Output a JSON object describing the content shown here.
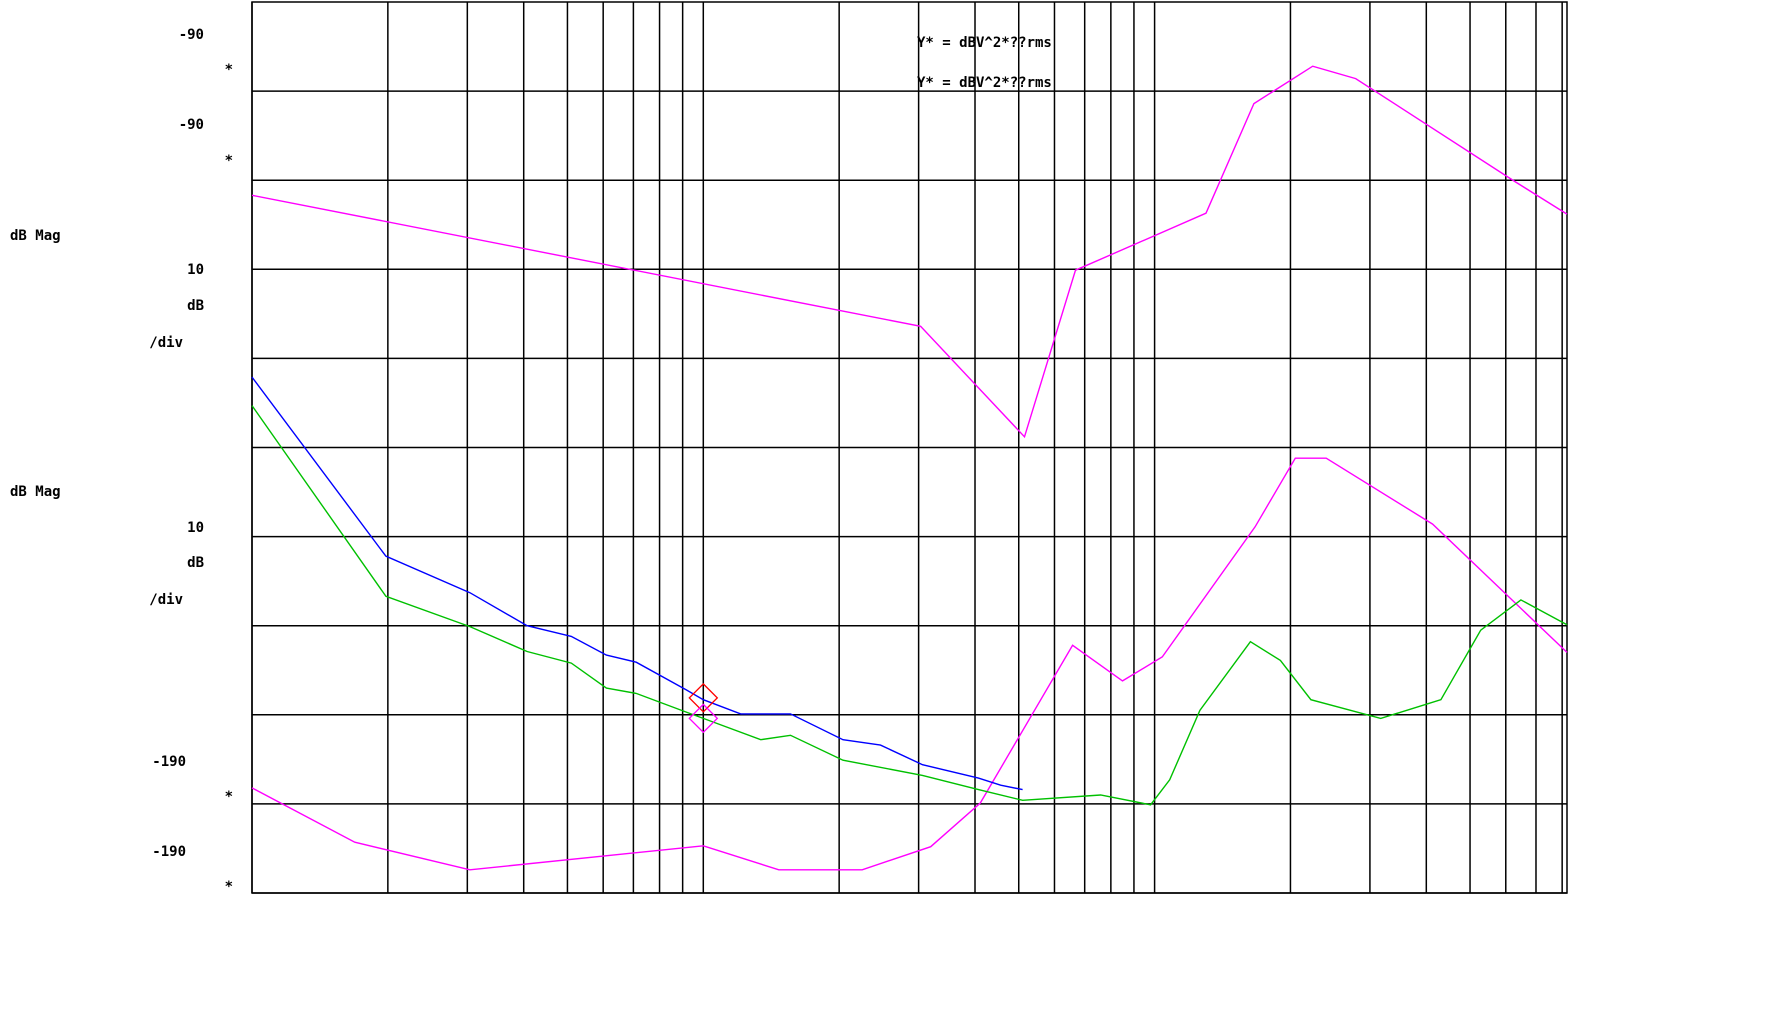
{
  "chart_data": {
    "type": "line",
    "log_x": true,
    "grid": true,
    "xlim": [
      1,
      820
    ],
    "ylim": [
      -190,
      -90
    ],
    "xticks": [
      1,
      2,
      3,
      4,
      5,
      6,
      7,
      8,
      9,
      10,
      20,
      30,
      40,
      50,
      60,
      70,
      80,
      90,
      100,
      200,
      300,
      400,
      500,
      600,
      700,
      800
    ],
    "yticks": [
      -190,
      -180,
      -170,
      -160,
      -150,
      -140,
      -130,
      -120,
      -110,
      -100
    ],
    "side_labels": [
      "-90",
      "*",
      "-90",
      "*",
      "dB Mag",
      "10",
      "dB",
      "/div",
      "dB Mag",
      "10",
      "dB",
      "/div",
      "-190",
      "*",
      "-190",
      "*"
    ],
    "annotations": [
      "Y* = dBV^2*??rms",
      "Y* = dBV^2*??rms"
    ],
    "series": [
      {
        "color": "#ff00ff",
        "x": [
          1,
          30.3,
          51.5,
          66.8,
          130,
          166,
          224,
          279,
          631,
          820
        ],
        "values": [
          -111.7,
          -126.4,
          -138.8,
          -120.1,
          -113.7,
          -101.4,
          -97.2,
          -98.6,
          -110.2,
          -113.8
        ]
      },
      {
        "color": "#ff00ff",
        "x": [
          1,
          1.69,
          3.04,
          10,
          14.7,
          22.5,
          31.9,
          41.1,
          65.8,
          84.9,
          104,
          167,
          205,
          240,
          413,
          820
        ],
        "values": [
          -178.2,
          -184.3,
          -187.4,
          -184.7,
          -187.4,
          -187.4,
          -184.8,
          -179.9,
          -162.2,
          -166.2,
          -163.5,
          -148.9,
          -141.2,
          -141.2,
          -148.6,
          -163.0
        ]
      },
      {
        "color": "#0000ff",
        "x": [
          1,
          1.98,
          3.04,
          4.07,
          5.1,
          6.1,
          7.1,
          9.17,
          10,
          12.1,
          15.6,
          20.4,
          24.7,
          30.6,
          40.7,
          45.6,
          51.0
        ],
        "values": [
          -132.1,
          -152.2,
          -156.3,
          -160.0,
          -161.2,
          -163.3,
          -164.1,
          -167.2,
          -168.3,
          -169.9,
          -169.9,
          -172.8,
          -173.4,
          -175.6,
          -177.1,
          -177.9,
          -178.4
        ]
      },
      {
        "color": "#00c000",
        "x": [
          1,
          1.98,
          3.04,
          4.07,
          5.1,
          6.1,
          7.1,
          9.17,
          10,
          13.4,
          15.6,
          20.4,
          30.6,
          40.7,
          51.0,
          75.9,
          98,
          108,
          126,
          163,
          190,
          222,
          317,
          431,
          528,
          648,
          820
        ],
        "values": [
          -135.3,
          -156.7,
          -160.1,
          -162.9,
          -164.2,
          -167.0,
          -167.6,
          -169.7,
          -170.4,
          -172.8,
          -172.3,
          -175.1,
          -176.8,
          -178.4,
          -179.6,
          -179.0,
          -180.1,
          -177.3,
          -169.5,
          -161.8,
          -163.9,
          -168.3,
          -170.4,
          -168.3,
          -160.5,
          -157.1,
          -159.9
        ]
      },
      {
        "color": "#ff0000",
        "marker": "diamond",
        "x": [
          10
        ],
        "values": [
          -168.1
        ]
      },
      {
        "color": "#ff00ff",
        "marker": "diamond",
        "x": [
          10
        ],
        "values": [
          -170.4
        ]
      }
    ]
  }
}
